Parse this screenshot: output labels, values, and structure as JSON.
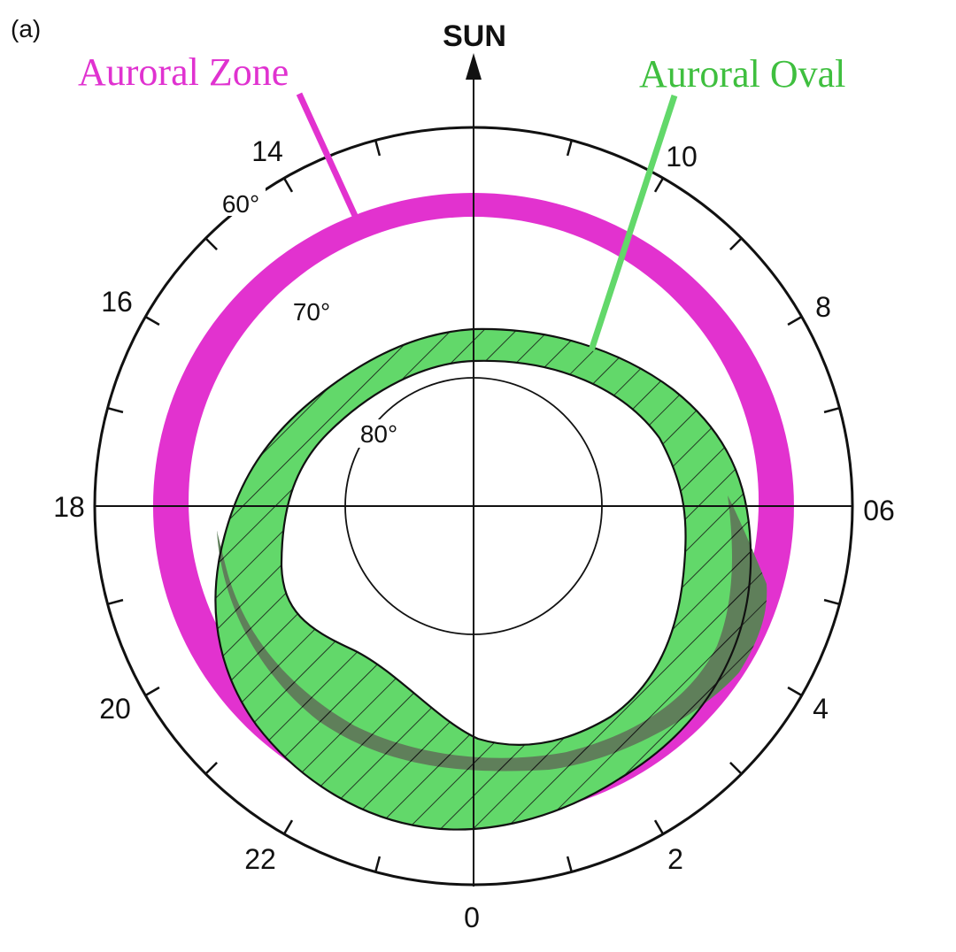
{
  "panel_label": "(a)",
  "sun_label": "SUN",
  "zone_label": "Auroral Zone",
  "oval_label": "Auroral Oval",
  "colors": {
    "zone": "#e232cf",
    "oval": "#62d86a",
    "oval_overlap": "#5f7f5a",
    "zone_text": "#e032d0",
    "oval_text": "#3fbf3f",
    "ink": "#111111"
  },
  "hour_labels": [
    "14",
    "10",
    "16",
    "8",
    "18",
    "06",
    "20",
    "4",
    "22",
    "2",
    "0"
  ],
  "latitude_labels": [
    "60°",
    "70°",
    "80°"
  ]
}
